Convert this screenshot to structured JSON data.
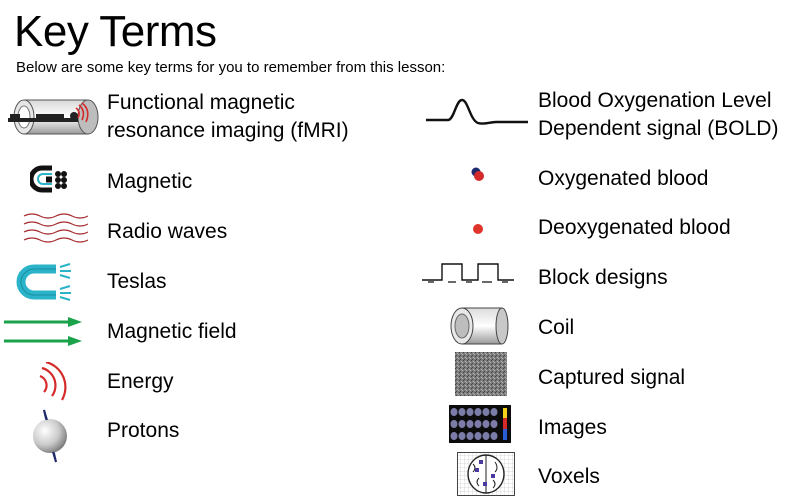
{
  "header": {
    "title": "Key Terms",
    "subtitle": "Below are some key terms for you to remember from this lesson:"
  },
  "left_terms": [
    {
      "label_line1": "Functional magnetic",
      "label_line2": "resonance imaging (fMRI)",
      "icon": "mri-scanner-icon"
    },
    {
      "label": "Magnetic",
      "icon": "magnet-icon"
    },
    {
      "label": "Radio waves",
      "icon": "radio-waves-icon"
    },
    {
      "label": "Teslas",
      "icon": "horseshoe-magnet-icon"
    },
    {
      "label": "Magnetic field",
      "icon": "field-arrows-icon"
    },
    {
      "label": "Energy",
      "icon": "energy-waves-icon"
    },
    {
      "label": "Protons",
      "icon": "proton-icon"
    }
  ],
  "right_terms": [
    {
      "label_line1": "Blood Oxygenation Level",
      "label_line2": "Dependent signal (BOLD)",
      "icon": "bold-curve-icon"
    },
    {
      "label": "Oxygenated blood",
      "icon": "oxygenated-blood-icon"
    },
    {
      "label": "Deoxygenated blood",
      "icon": "deoxygenated-blood-icon"
    },
    {
      "label": "Block designs",
      "icon": "block-design-icon"
    },
    {
      "label": "Coil",
      "icon": "coil-icon"
    },
    {
      "label": "Captured signal",
      "icon": "noise-signal-icon"
    },
    {
      "label": "Images",
      "icon": "brain-images-icon"
    },
    {
      "label": "Voxels",
      "icon": "voxel-brain-icon"
    }
  ],
  "colors": {
    "red": "#d42a2a",
    "teal": "#2ab3c9",
    "green": "#1aa34a",
    "navy": "#1f2a6b",
    "gray": "#8c8c8c"
  }
}
